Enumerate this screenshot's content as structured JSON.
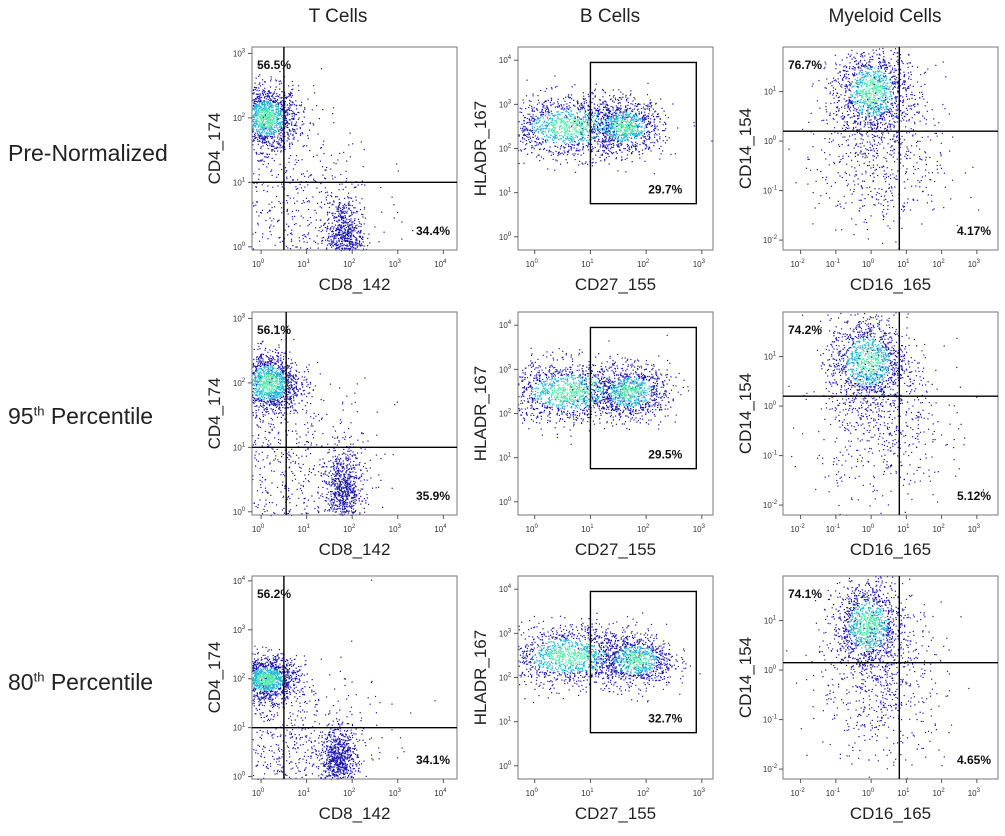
{
  "column_headers": [
    "T Cells",
    "B Cells",
    "Myeloid Cells"
  ],
  "row_labels": [
    {
      "main": "Pre-Normalized",
      "sup": "",
      "rest": ""
    },
    {
      "main": "95",
      "sup": "th",
      "rest": " Percentile"
    },
    {
      "main": "80",
      "sup": "th",
      "rest": " Percentile"
    }
  ],
  "colors": {
    "density_low": "#1a14b0",
    "density_mid": "#1fb7d4",
    "density_high": "#4ee8a6",
    "gate_line": "#000000"
  },
  "chart_data": [
    {
      "type": "scatter",
      "row": "Pre-Normalized",
      "column": "T Cells",
      "xlabel": "CD8_142",
      "ylabel": "CD4_174",
      "x_ticks": [
        "0",
        "1",
        "2",
        "3",
        "4"
      ],
      "y_ticks": [
        "0",
        "1",
        "2",
        "3"
      ],
      "xlim": [
        -0.2,
        4.3
      ],
      "ylim": [
        -0.05,
        3.1
      ],
      "gate": {
        "kind": "quadrant",
        "x": 0.5,
        "y": 1.0
      },
      "labels": [
        {
          "text": "56.5%",
          "pos": "top-left"
        },
        {
          "text": "34.4%",
          "pos": "bottom-right"
        }
      ],
      "clusters": [
        {
          "x": 0.1,
          "y": 2.0,
          "sx": 0.35,
          "sy": 0.25,
          "n": 1400
        },
        {
          "x": 1.8,
          "y": 0.15,
          "sx": 0.2,
          "sy": 0.3,
          "n": 700
        },
        {
          "x": 0.5,
          "y": 0.6,
          "sx": 1.0,
          "sy": 0.8,
          "n": 700
        }
      ]
    },
    {
      "type": "scatter",
      "row": "Pre-Normalized",
      "column": "B Cells",
      "xlabel": "CD27_155",
      "ylabel": "HLADR_167",
      "x_ticks": [
        "0",
        "1",
        "2",
        "3"
      ],
      "y_ticks": [
        "0",
        "1",
        "2",
        "3",
        "4"
      ],
      "xlim": [
        -0.3,
        3.2
      ],
      "ylim": [
        -0.3,
        4.3
      ],
      "gate": {
        "kind": "box",
        "x0": 1.0,
        "x1": 2.9,
        "y0": 0.75,
        "y1": 3.95
      },
      "labels": [
        {
          "text": "29.7%",
          "pos": "box-bottom-right"
        }
      ],
      "clusters": [
        {
          "x": 0.6,
          "y": 2.5,
          "sx": 0.6,
          "sy": 0.35,
          "n": 1300
        },
        {
          "x": 1.6,
          "y": 2.5,
          "sx": 0.35,
          "sy": 0.3,
          "n": 900
        }
      ]
    },
    {
      "type": "scatter",
      "row": "Pre-Normalized",
      "column": "Myeloid Cells",
      "xlabel": "CD16_165",
      "ylabel": "CD14_154",
      "x_ticks": [
        "-2",
        "-1",
        "0",
        "1",
        "2",
        "3"
      ],
      "y_ticks": [
        "-2",
        "-1",
        "0",
        "1"
      ],
      "xlim": [
        -2.5,
        3.6
      ],
      "ylim": [
        -2.2,
        1.9
      ],
      "gate": {
        "kind": "quadrant",
        "x": 0.8,
        "y": 0.2
      },
      "labels": [
        {
          "text": "76.7%",
          "pos": "top-left"
        },
        {
          "text": "4.17%",
          "pos": "bottom-right"
        }
      ],
      "clusters": [
        {
          "x": 0.0,
          "y": 1.0,
          "sx": 0.55,
          "sy": 0.45,
          "n": 1200
        },
        {
          "x": 0.3,
          "y": -0.3,
          "sx": 0.9,
          "sy": 0.8,
          "n": 600
        }
      ]
    },
    {
      "type": "scatter",
      "row": "95th Percentile",
      "column": "T Cells",
      "xlabel": "CD8_142",
      "ylabel": "CD4_174",
      "x_ticks": [
        "0",
        "1",
        "2",
        "3",
        "4"
      ],
      "y_ticks": [
        "0",
        "1",
        "2",
        "3"
      ],
      "xlim": [
        -0.2,
        4.3
      ],
      "ylim": [
        -0.05,
        3.1
      ],
      "gate": {
        "kind": "quadrant",
        "x": 0.55,
        "y": 1.0
      },
      "labels": [
        {
          "text": "56.1%",
          "pos": "top-left"
        },
        {
          "text": "35.9%",
          "pos": "bottom-right"
        }
      ],
      "clusters": [
        {
          "x": 0.15,
          "y": 2.0,
          "sx": 0.35,
          "sy": 0.25,
          "n": 1400
        },
        {
          "x": 1.8,
          "y": 0.35,
          "sx": 0.2,
          "sy": 0.3,
          "n": 700
        },
        {
          "x": 0.5,
          "y": 0.6,
          "sx": 1.0,
          "sy": 0.8,
          "n": 700
        }
      ]
    },
    {
      "type": "scatter",
      "row": "95th Percentile",
      "column": "B Cells",
      "xlabel": "CD27_155",
      "ylabel": "HLADR_167",
      "x_ticks": [
        "0",
        "1",
        "2",
        "3"
      ],
      "y_ticks": [
        "0",
        "1",
        "2",
        "3",
        "4"
      ],
      "xlim": [
        -0.3,
        3.2
      ],
      "ylim": [
        -0.3,
        4.3
      ],
      "gate": {
        "kind": "box",
        "x0": 1.0,
        "x1": 2.9,
        "y0": 0.75,
        "y1": 3.95
      },
      "labels": [
        {
          "text": "29.5%",
          "pos": "box-bottom-right"
        }
      ],
      "clusters": [
        {
          "x": 0.6,
          "y": 2.5,
          "sx": 0.6,
          "sy": 0.35,
          "n": 1300
        },
        {
          "x": 1.7,
          "y": 2.5,
          "sx": 0.35,
          "sy": 0.3,
          "n": 900
        }
      ]
    },
    {
      "type": "scatter",
      "row": "95th Percentile",
      "column": "Myeloid Cells",
      "xlabel": "CD16_165",
      "ylabel": "CD14_154",
      "x_ticks": [
        "-2",
        "-1",
        "0",
        "1",
        "2",
        "3"
      ],
      "y_ticks": [
        "-2",
        "-1",
        "0",
        "1"
      ],
      "xlim": [
        -2.5,
        3.6
      ],
      "ylim": [
        -2.2,
        1.9
      ],
      "gate": {
        "kind": "quadrant",
        "x": 0.8,
        "y": 0.2
      },
      "labels": [
        {
          "text": "74.2%",
          "pos": "top-left"
        },
        {
          "text": "5.12%",
          "pos": "bottom-right"
        }
      ],
      "clusters": [
        {
          "x": -0.1,
          "y": 0.9,
          "sx": 0.55,
          "sy": 0.45,
          "n": 1200
        },
        {
          "x": 0.3,
          "y": -0.3,
          "sx": 0.9,
          "sy": 0.8,
          "n": 600
        }
      ]
    },
    {
      "type": "scatter",
      "row": "80th Percentile",
      "column": "T Cells",
      "xlabel": "CD8_142",
      "ylabel": "CD4_174",
      "x_ticks": [
        "0",
        "1",
        "2",
        "3",
        "4"
      ],
      "y_ticks": [
        "0",
        "1",
        "2",
        "3",
        "4"
      ],
      "xlim": [
        -0.2,
        4.3
      ],
      "ylim": [
        -0.05,
        4.1
      ],
      "gate": {
        "kind": "quadrant",
        "x": 0.5,
        "y": 1.0
      },
      "labels": [
        {
          "text": "56.2%",
          "pos": "top-left"
        },
        {
          "text": "34.1%",
          "pos": "bottom-right"
        }
      ],
      "clusters": [
        {
          "x": 0.1,
          "y": 2.0,
          "sx": 0.35,
          "sy": 0.22,
          "n": 1400
        },
        {
          "x": 1.7,
          "y": 0.35,
          "sx": 0.2,
          "sy": 0.3,
          "n": 700
        },
        {
          "x": 0.5,
          "y": 0.6,
          "sx": 1.0,
          "sy": 0.8,
          "n": 700
        }
      ]
    },
    {
      "type": "scatter",
      "row": "80th Percentile",
      "column": "B Cells",
      "xlabel": "CD27_155",
      "ylabel": "HLADR_167",
      "x_ticks": [
        "0",
        "1",
        "2",
        "3"
      ],
      "y_ticks": [
        "0",
        "1",
        "2",
        "3",
        "4"
      ],
      "xlim": [
        -0.3,
        3.2
      ],
      "ylim": [
        -0.3,
        4.3
      ],
      "gate": {
        "kind": "box",
        "x0": 1.0,
        "x1": 2.9,
        "y0": 0.75,
        "y1": 3.95
      },
      "labels": [
        {
          "text": "32.7%",
          "pos": "box-bottom-right"
        }
      ],
      "clusters": [
        {
          "x": 0.6,
          "y": 2.5,
          "sx": 0.6,
          "sy": 0.35,
          "n": 1300
        },
        {
          "x": 1.8,
          "y": 2.4,
          "sx": 0.35,
          "sy": 0.3,
          "n": 900
        }
      ]
    },
    {
      "type": "scatter",
      "row": "80th Percentile",
      "column": "Myeloid Cells",
      "xlabel": "CD16_165",
      "ylabel": "CD14_154",
      "x_ticks": [
        "-2",
        "-1",
        "0",
        "1",
        "2",
        "3"
      ],
      "y_ticks": [
        "-2",
        "-1",
        "0",
        "1"
      ],
      "xlim": [
        -2.5,
        3.6
      ],
      "ylim": [
        -2.2,
        1.9
      ],
      "gate": {
        "kind": "quadrant",
        "x": 0.8,
        "y": 0.15
      },
      "labels": [
        {
          "text": "74.1%",
          "pos": "top-left"
        },
        {
          "text": "4.65%",
          "pos": "bottom-right"
        }
      ],
      "clusters": [
        {
          "x": -0.1,
          "y": 0.9,
          "sx": 0.5,
          "sy": 0.45,
          "n": 1200
        },
        {
          "x": 0.3,
          "y": -0.3,
          "sx": 0.9,
          "sy": 0.8,
          "n": 600
        }
      ]
    }
  ]
}
